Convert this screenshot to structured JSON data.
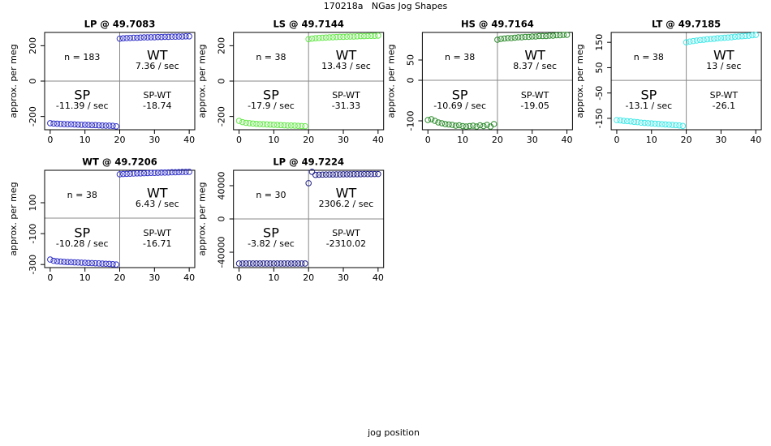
{
  "title": "170218a   NGas Jog Shapes",
  "x_label": "jog position",
  "chart_data": [
    {
      "type": "scatter",
      "title": "LP @ 49.7083",
      "y_label": "approx. per meg",
      "x": [
        0,
        1,
        2,
        3,
        4,
        5,
        6,
        7,
        8,
        9,
        10,
        11,
        12,
        13,
        14,
        15,
        16,
        17,
        18,
        19,
        20,
        21,
        22,
        23,
        24,
        25,
        26,
        27,
        28,
        29,
        30,
        31,
        32,
        33,
        34,
        35,
        36,
        37,
        38,
        39,
        40
      ],
      "series": [
        {
          "color": "#3030c8",
          "values": [
            -238,
            -240,
            -241,
            -242,
            -243,
            -244,
            -244,
            -245,
            -246,
            -247,
            -247,
            -248,
            -249,
            -249,
            -250,
            -251,
            -252,
            -252,
            -253,
            -256,
            240,
            242,
            243,
            244,
            245,
            245,
            246,
            247,
            247,
            248,
            248,
            249,
            249,
            250,
            250,
            251,
            251,
            252,
            252,
            253,
            253
          ]
        }
      ],
      "annotations": {
        "n": "n = 183",
        "wt": "WT",
        "wt_rate": "7.36 / sec",
        "sp": "SP",
        "sp_rate": "-11.39 / sec",
        "diff_label": "SP-WT",
        "diff": "-18.74"
      },
      "xlim": [
        -1.6,
        41.6
      ],
      "xticks": [
        0,
        10,
        20,
        30,
        40
      ],
      "ylim": [
        -275,
        275
      ],
      "yticks": [
        -200,
        0,
        200
      ]
    },
    {
      "type": "scatter",
      "title": "LS @ 49.7144",
      "y_label": "approx. per meg",
      "x": [
        0,
        1,
        2,
        3,
        4,
        5,
        6,
        7,
        8,
        9,
        10,
        11,
        12,
        13,
        14,
        15,
        16,
        17,
        18,
        19,
        20,
        21,
        22,
        23,
        24,
        25,
        26,
        27,
        28,
        29,
        30,
        31,
        32,
        33,
        34,
        35,
        36,
        37,
        38,
        39,
        40
      ],
      "series": [
        {
          "color": "#66e84a",
          "values": [
            -225,
            -232,
            -236,
            -238,
            -240,
            -242,
            -243,
            -244,
            -245,
            -246,
            -247,
            -248,
            -249,
            -250,
            -251,
            -251,
            -252,
            -253,
            -254,
            -255,
            237,
            240,
            242,
            244,
            245,
            246,
            247,
            248,
            249,
            250,
            250,
            251,
            252,
            252,
            253,
            254,
            254,
            255,
            256,
            256,
            257
          ]
        }
      ],
      "annotations": {
        "n": "n = 38",
        "wt": "WT",
        "wt_rate": "13.43 / sec",
        "sp": "SP",
        "sp_rate": "-17.9 / sec",
        "diff_label": "SP-WT",
        "diff": "-31.33"
      },
      "xlim": [
        -1.6,
        41.6
      ],
      "xticks": [
        0,
        10,
        20,
        30,
        40
      ],
      "ylim": [
        -275,
        275
      ],
      "yticks": [
        -200,
        0,
        200
      ]
    },
    {
      "type": "scatter",
      "title": "HS @ 49.7164",
      "y_label": "approx. per meg",
      "x": [
        0,
        1,
        2,
        3,
        4,
        5,
        6,
        7,
        8,
        9,
        10,
        11,
        12,
        13,
        14,
        15,
        16,
        17,
        18,
        19,
        20,
        21,
        22,
        23,
        24,
        25,
        26,
        27,
        28,
        29,
        30,
        31,
        32,
        33,
        34,
        35,
        36,
        37,
        38,
        39,
        40
      ],
      "series": [
        {
          "color": "#2a8a2a",
          "values": [
            -98,
            -96,
            -100,
            -104,
            -106,
            -108,
            -109,
            -110,
            -112,
            -111,
            -113,
            -114,
            -113,
            -112,
            -114,
            -111,
            -113,
            -110,
            -114,
            -108,
            100,
            102,
            103,
            104,
            104,
            105,
            106,
            106,
            107,
            107,
            108,
            108,
            109,
            109,
            109,
            110,
            110,
            111,
            111,
            112,
            112
          ]
        }
      ],
      "annotations": {
        "n": "n = 38",
        "wt": "WT",
        "wt_rate": "8.37 / sec",
        "sp": "SP",
        "sp_rate": "-10.69 / sec",
        "diff_label": "SP-WT",
        "diff": "-19.05"
      },
      "xlim": [
        -1.6,
        41.6
      ],
      "xticks": [
        0,
        10,
        20,
        30,
        40
      ],
      "ylim": [
        -122,
        118
      ],
      "yticks": [
        -100,
        0,
        50
      ]
    },
    {
      "type": "scatter",
      "title": "LT @ 49.7185",
      "y_label": "approx. per meg",
      "x": [
        0,
        1,
        2,
        3,
        4,
        5,
        6,
        7,
        8,
        9,
        10,
        11,
        12,
        13,
        14,
        15,
        16,
        17,
        18,
        19,
        20,
        21,
        22,
        23,
        24,
        25,
        26,
        27,
        28,
        29,
        30,
        31,
        32,
        33,
        34,
        35,
        36,
        37,
        38,
        39,
        40
      ],
      "series": [
        {
          "color": "#40e8e8",
          "values": [
            -157,
            -158,
            -160,
            -161,
            -162,
            -164,
            -165,
            -167,
            -168,
            -169,
            -170,
            -171,
            -172,
            -173,
            -174,
            -175,
            -176,
            -177,
            -178,
            -180,
            150,
            153,
            155,
            157,
            159,
            160,
            162,
            163,
            164,
            166,
            167,
            168,
            169,
            170,
            172,
            173,
            174,
            175,
            176,
            178,
            179
          ]
        }
      ],
      "annotations": {
        "n": "n = 38",
        "wt": "WT",
        "wt_rate": "13 / sec",
        "sp": "SP",
        "sp_rate": "-13.1 / sec",
        "diff_label": "SP-WT",
        "diff": "-26.1"
      },
      "xlim": [
        -1.6,
        41.6
      ],
      "xticks": [
        0,
        10,
        20,
        30,
        40
      ],
      "ylim": [
        -195,
        189
      ],
      "yticks": [
        -150,
        -50,
        50,
        150
      ]
    },
    {
      "type": "scatter",
      "title": "WT @ 49.7206",
      "y_label": "approx. per meg",
      "x": [
        0,
        1,
        2,
        3,
        4,
        5,
        6,
        7,
        8,
        9,
        10,
        11,
        12,
        13,
        14,
        15,
        16,
        17,
        18,
        19,
        20,
        21,
        22,
        23,
        24,
        25,
        26,
        27,
        28,
        29,
        30,
        31,
        32,
        33,
        34,
        35,
        36,
        37,
        38,
        39,
        40
      ],
      "series": [
        {
          "color": "#3030c8",
          "values": [
            -268,
            -276,
            -279,
            -281,
            -283,
            -284,
            -285,
            -286,
            -287,
            -288,
            -289,
            -290,
            -291,
            -292,
            -293,
            -294,
            -295,
            -296,
            -298,
            -300,
            284,
            286,
            287,
            288,
            289,
            290,
            290,
            291,
            292,
            293,
            293,
            294,
            295,
            295,
            296,
            297,
            297,
            298,
            299,
            299,
            300
          ]
        }
      ],
      "annotations": {
        "n": "n = 38",
        "wt": "WT",
        "wt_rate": "6.43 / sec",
        "sp": "SP",
        "sp_rate": "-10.28 / sec",
        "diff_label": "SP-WT",
        "diff": "-16.71"
      },
      "xlim": [
        -1.6,
        41.6
      ],
      "xticks": [
        0,
        10,
        20,
        30,
        40
      ],
      "ylim": [
        -320,
        310
      ],
      "yticks": [
        -300,
        -100,
        100
      ]
    },
    {
      "type": "scatter",
      "title": "LP @ 49.7224",
      "y_label": "approx. per meg",
      "x": [
        0,
        1,
        2,
        3,
        4,
        5,
        6,
        7,
        8,
        9,
        10,
        11,
        12,
        13,
        14,
        15,
        16,
        17,
        18,
        19,
        20,
        21,
        22,
        23,
        24,
        25,
        26,
        27,
        28,
        29,
        30,
        31,
        32,
        33,
        34,
        35,
        36,
        37,
        38,
        39,
        40
      ],
      "series": [
        {
          "color": "#202088",
          "values": [
            -53600,
            -53600,
            -53600,
            -53600,
            -53600,
            -53600,
            -53600,
            -53600,
            -53600,
            -53600,
            -53600,
            -53600,
            -53600,
            -53600,
            -53600,
            -53600,
            -53600,
            -53600,
            -53600,
            -53600,
            43000,
            56600,
            53000,
            53200,
            53300,
            53400,
            53500,
            53500,
            53600,
            53600,
            53700,
            53700,
            53700,
            53800,
            53800,
            53800,
            53900,
            53900,
            53900,
            54000,
            54000
          ]
        }
      ],
      "annotations": {
        "n": "n = 30",
        "wt": "WT",
        "wt_rate": "2306.2 / sec",
        "sp": "SP",
        "sp_rate": "-3.82 / sec",
        "diff_label": "SP-WT",
        "diff": "-2310.02"
      },
      "xlim": [
        -1.6,
        41.6
      ],
      "xticks": [
        0,
        10,
        20,
        30,
        40
      ],
      "ylim": [
        -58500,
        58500
      ],
      "yticks": [
        -40000,
        0,
        40000
      ]
    }
  ]
}
